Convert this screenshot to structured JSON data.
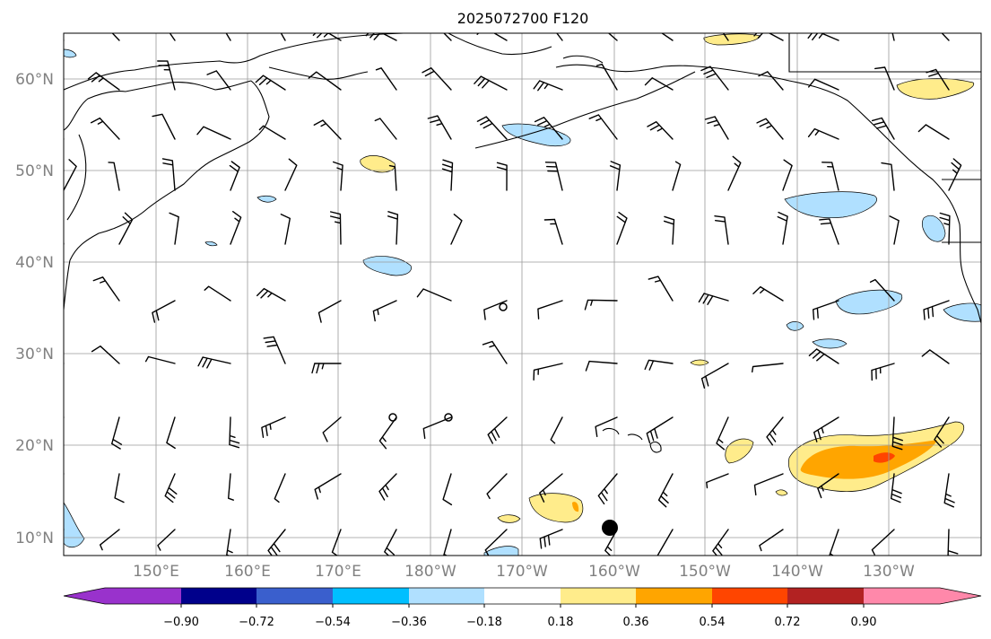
{
  "map": {
    "title": "2025072700 F120",
    "lat_labels": [
      "60°N",
      "50°N",
      "40°N",
      "30°N",
      "20°N",
      "10°N"
    ],
    "lon_labels": [
      "150°E",
      "160°E",
      "170°E",
      "180°W",
      "170°W",
      "160°W",
      "150°W",
      "140°W",
      "130°W"
    ],
    "grid": true,
    "region": "North Pacific",
    "features": [
      "coastlines",
      "wind-barbs",
      "shaded-contours",
      "point-marker"
    ]
  },
  "colorbar": {
    "ticks": [
      "−0.90",
      "−0.72",
      "−0.54",
      "−0.36",
      "−0.18",
      "0.18",
      "0.36",
      "0.54",
      "0.72",
      "0.90"
    ],
    "colors": [
      "#9932cc",
      "#00008b",
      "#3a5fcd",
      "#00bfff",
      "#b0e0ff",
      "#ffffff",
      "#ffec8b",
      "#ffa500",
      "#ff4500",
      "#b22222",
      "#ff88aa"
    ],
    "extend": "both"
  }
}
